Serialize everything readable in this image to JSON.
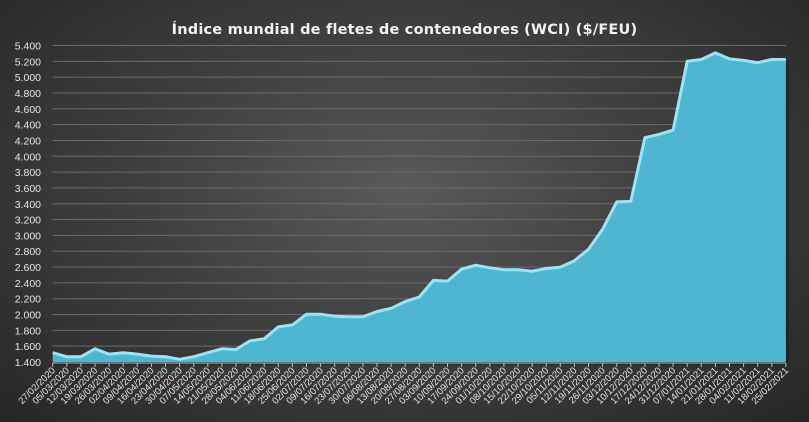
{
  "chart_data": {
    "type": "area",
    "title": "Índice mundial de fletes de contenedores (WCI) ($/FEU)",
    "xlabel": "",
    "ylabel": "",
    "ylim": [
      1400,
      5400
    ],
    "ytick_step": 200,
    "ytick_labels": [
      "1.400",
      "1.600",
      "1.800",
      "2.000",
      "2.200",
      "2.400",
      "2.600",
      "2.800",
      "3.000",
      "3.200",
      "3.400",
      "3.600",
      "3.800",
      "4.000",
      "4.200",
      "4.400",
      "4.600",
      "4.800",
      "5.000",
      "5.200",
      "5.400"
    ],
    "grid": true,
    "legend": "none",
    "colors": {
      "fill": "#4fb6d1",
      "line": "#8fe8fb",
      "grid": "#6a6a6a",
      "text": "#e6e6e6"
    },
    "categories": [
      "27/02/2020",
      "05/03/2020",
      "12/03/2020",
      "19/03/2020",
      "26/03/2020",
      "02/04/2020",
      "09/04/2020",
      "16/04/2020",
      "23/04/2020",
      "30/04/2020",
      "07/05/2020",
      "14/05/2020",
      "21/05/2020",
      "28/05/2020",
      "04/06/2020",
      "11/06/2020",
      "18/06/2020",
      "25/06/2020",
      "02/07/2020",
      "09/07/2020",
      "16/07/2020",
      "23/07/2020",
      "30/07/2020",
      "06/08/2020",
      "13/08/2020",
      "20/08/2020",
      "27/08/2020",
      "03/09/2020",
      "10/09/2020",
      "17/09/2020",
      "24/09/2020",
      "01/10/2020",
      "08/10/2020",
      "15/10/2020",
      "22/10/2020",
      "29/10/2020",
      "05/11/2020",
      "12/11/2020",
      "19/11/2020",
      "26/11/2020",
      "03/12/2020",
      "10/12/2020",
      "17/12/2020",
      "24/12/2020",
      "31/12/2020",
      "07/01/2021",
      "14/01/2021",
      "21/01/2021",
      "28/01/2021",
      "04/02/2021",
      "11/02/2021",
      "18/02/2021",
      "25/02/2021"
    ],
    "values": [
      1517,
      1467,
      1467,
      1567,
      1500,
      1517,
      1500,
      1475,
      1467,
      1434,
      1467,
      1517,
      1567,
      1558,
      1668,
      1693,
      1844,
      1869,
      2004,
      2004,
      1979,
      1971,
      1971,
      2038,
      2079,
      2163,
      2222,
      2431,
      2422,
      2574,
      2624,
      2590,
      2566,
      2566,
      2548,
      2582,
      2599,
      2680,
      2826,
      3078,
      3423,
      3430,
      4235,
      4277,
      4331,
      5202,
      5223,
      5307,
      5231,
      5212,
      5182,
      5223,
      5223
    ]
  }
}
